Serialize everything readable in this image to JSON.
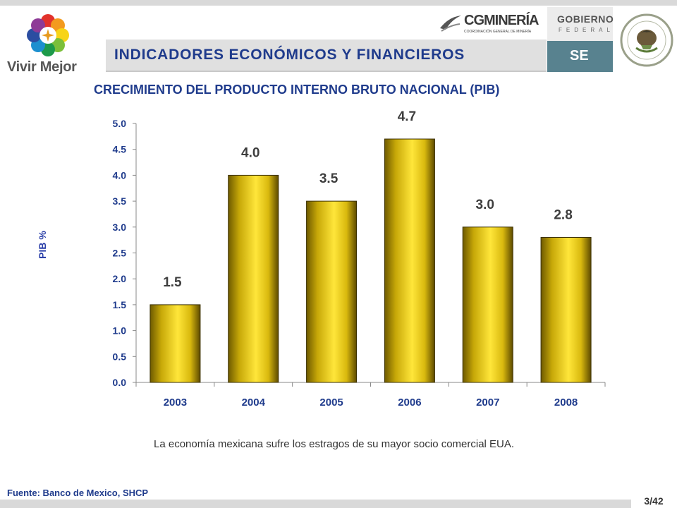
{
  "header": {
    "logo_text": "Vivir Mejor",
    "title": "INDICADORES ECONÓMICOS Y FINANCIEROS",
    "cg_logo_text": "CGMINERÍA",
    "cg_logo_sub": "COORDINACIÓN GENERAL DE MINERÍA",
    "gobierno_title": "GOBIERNO",
    "gobierno_sub": "FEDERAL",
    "se_label": "SE"
  },
  "chart_data": {
    "type": "bar",
    "title": "CRECIMIENTO DEL PRODUCTO INTERNO BRUTO NACIONAL (PIB)",
    "xlabel": "",
    "ylabel": "PIB %",
    "categories": [
      "2003",
      "2004",
      "2005",
      "2006",
      "2007",
      "2008"
    ],
    "values": [
      1.5,
      4.0,
      3.5,
      4.7,
      3.0,
      2.8
    ],
    "data_labels": [
      "1.5",
      "4.0",
      "3.5",
      "4.7",
      "3.0",
      "2.8"
    ],
    "ylim": [
      0,
      5
    ],
    "yticks": [
      "0.0",
      "0.5",
      "1.0",
      "1.5",
      "2.0",
      "2.5",
      "3.0",
      "3.5",
      "4.0",
      "4.5",
      "5.0"
    ],
    "grid": false,
    "legend": "none",
    "bar_color": "#f2cf12"
  },
  "footer": {
    "note": "La economía mexicana sufre los estragos de su mayor socio comercial EUA.",
    "source": "Fuente: Banco de Mexico, SHCP",
    "page": "3/42"
  }
}
